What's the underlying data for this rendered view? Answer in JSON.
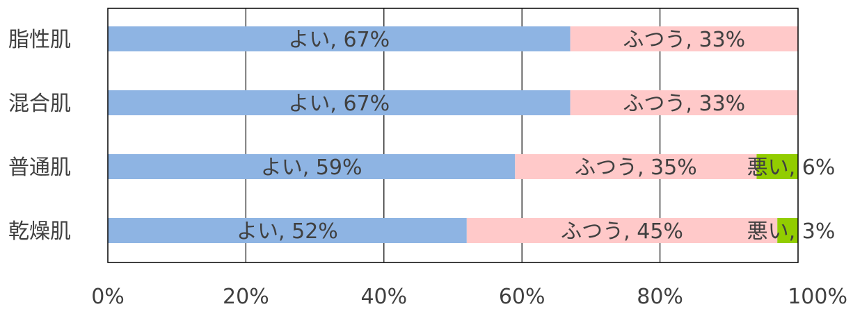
{
  "chart_data": {
    "type": "bar",
    "orientation": "horizontal",
    "stacked": "percent",
    "categories": [
      "脂性肌",
      "混合肌",
      "普通肌",
      "乾燥肌"
    ],
    "series": [
      {
        "name": "よい",
        "values": [
          67,
          67,
          59,
          52
        ],
        "color": "#8eb4e3"
      },
      {
        "name": "ふつう",
        "values": [
          33,
          33,
          35,
          45
        ],
        "color": "#ffc9c9"
      },
      {
        "name": "悪い",
        "values": [
          0,
          0,
          6,
          3
        ],
        "color": "#92cd00"
      }
    ],
    "data_labels": [
      [
        "よい, 67%",
        "ふつう, 33%",
        ""
      ],
      [
        "よい, 67%",
        "ふつう, 33%",
        ""
      ],
      [
        "よい, 59%",
        "ふつう, 35%",
        "悪い, 6%"
      ],
      [
        "よい, 52%",
        "ふつう, 45%",
        "悪い, 3%"
      ]
    ],
    "xticks": [
      "0%",
      "20%",
      "40%",
      "60%",
      "80%",
      "100%"
    ],
    "xlim": [
      0,
      100
    ],
    "title": "",
    "xlabel": "",
    "ylabel": "",
    "grid": "vertical",
    "legend": "none"
  }
}
